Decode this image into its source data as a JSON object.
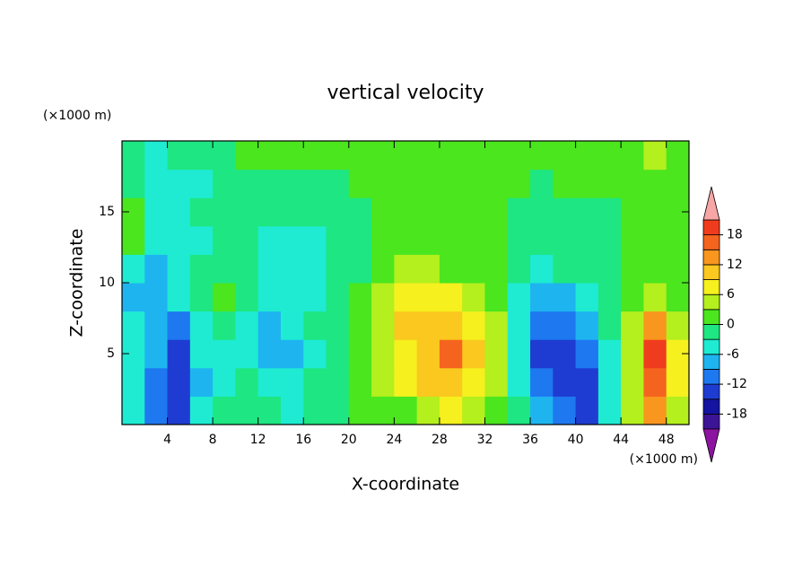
{
  "chart_data": {
    "type": "contour",
    "title": "vertical velocity",
    "xlabel": "X-coordinate",
    "ylabel": "Z-coordinate",
    "xunit": "(×1000 m)",
    "yunit": "(×1000 m)",
    "xlim": [
      0,
      50
    ],
    "ylim": [
      0,
      20
    ],
    "xticks": [
      4,
      8,
      12,
      16,
      20,
      24,
      28,
      32,
      36,
      40,
      44,
      48
    ],
    "yticks": [
      5,
      10,
      15
    ],
    "x": [
      1,
      3,
      5,
      7,
      9,
      11,
      13,
      15,
      17,
      19,
      21,
      23,
      25,
      27,
      29,
      31,
      33,
      35,
      37,
      39,
      41,
      43,
      45,
      47,
      49
    ],
    "y": [
      1,
      3,
      5,
      7,
      9,
      11,
      13,
      15,
      17,
      19
    ],
    "z": [
      [
        -4,
        -10,
        -13,
        -6,
        -3,
        -2,
        -1,
        -4,
        -2,
        -1,
        0,
        1,
        2,
        4,
        8,
        3,
        2,
        -3,
        -8,
        -10,
        -13,
        -4,
        3,
        12,
        4
      ],
      [
        -5,
        -11,
        -15,
        -7,
        -4,
        -3,
        -4,
        -6,
        -3,
        -1,
        1,
        3,
        6,
        9,
        11,
        7,
        4,
        -5,
        -11,
        -15,
        -14,
        -6,
        4,
        17,
        6
      ],
      [
        -5,
        -9,
        -14,
        -6,
        -4,
        -4,
        -7,
        -8,
        -4,
        -1,
        1,
        3,
        8,
        11,
        15,
        9,
        4,
        -6,
        -14,
        -15,
        -12,
        -5,
        4,
        19,
        6
      ],
      [
        -6,
        -8,
        -10,
        -5,
        -3,
        -5,
        -8,
        -6,
        -3,
        -1,
        0,
        4,
        9,
        9,
        10,
        8,
        3,
        -5,
        -12,
        -11,
        -9,
        -3,
        3,
        12,
        5
      ],
      [
        -7,
        -9,
        -5,
        -2,
        1,
        -3,
        -5,
        -5,
        -4,
        -2,
        0,
        4,
        7,
        7,
        6,
        5,
        2,
        -4,
        -8,
        -7,
        -5,
        -2,
        1,
        5,
        2
      ],
      [
        -5,
        -8,
        -5,
        -3,
        -1,
        -3,
        -5,
        -5,
        -5,
        -3,
        -1,
        2,
        3,
        3,
        2,
        2,
        1,
        -2,
        -4,
        -3,
        -3,
        -1,
        0,
        1,
        1
      ],
      [
        0,
        -4,
        -5,
        -4,
        -3,
        -3,
        -4,
        -4,
        -4,
        -3,
        -2,
        0,
        1,
        0,
        0,
        1,
        0,
        -2,
        -3,
        -2,
        -2,
        -1,
        0,
        0,
        0
      ],
      [
        2,
        -4,
        -5,
        -3,
        -2,
        -3,
        -3,
        -3,
        -3,
        -2,
        -1,
        0,
        0,
        0,
        1,
        1,
        1,
        -2,
        -3,
        -2,
        -2,
        -1,
        0,
        0,
        1
      ],
      [
        -2,
        -5,
        -6,
        -4,
        -2,
        -1,
        -2,
        -2,
        -2,
        -1,
        0,
        0,
        1,
        1,
        1,
        0,
        1,
        0,
        -1,
        0,
        1,
        1,
        0,
        2,
        2
      ],
      [
        -2,
        -4,
        -3,
        -2,
        -1,
        0,
        0,
        1,
        0,
        1,
        1,
        1,
        1,
        1,
        1,
        1,
        1,
        1,
        1,
        1,
        1,
        0,
        1,
        3,
        1
      ]
    ],
    "levels": [
      -21,
      -18,
      -15,
      -12,
      -9,
      -6,
      -3,
      0,
      3,
      6,
      9,
      12,
      15,
      18,
      21
    ],
    "colors": [
      "#8c14a0",
      "#3c1496",
      "#1414a0",
      "#1e3cd2",
      "#1e78f0",
      "#1eb4f0",
      "#1eebd2",
      "#1ee682",
      "#4be61e",
      "#b4ef1e",
      "#f5f01e",
      "#fac81e",
      "#f8961e",
      "#f5641e",
      "#f03c1e",
      "#e31a1c",
      "#f7a5a5"
    ],
    "colorbar_ticks": [
      -18,
      -12,
      -6,
      0,
      6,
      12,
      18
    ]
  }
}
